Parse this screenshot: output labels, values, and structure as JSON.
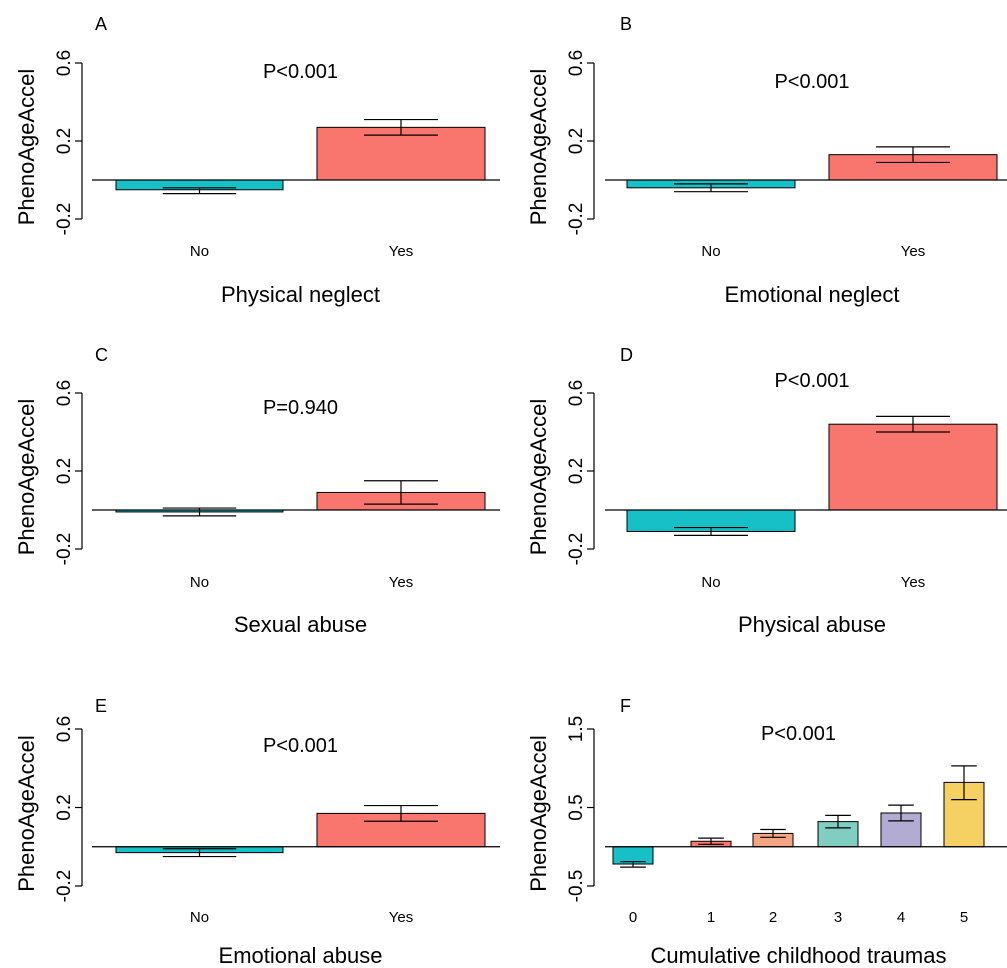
{
  "chart_data": [
    {
      "type": "bar",
      "panel": "A",
      "p_text": "P<0.001",
      "xlabel": "Physical neglect",
      "ylabel": "PhenoAgeAccel",
      "categories": [
        "No",
        "Yes"
      ],
      "values": [
        -0.05,
        0.27
      ],
      "error": [
        [
          -0.07,
          -0.04
        ],
        [
          0.23,
          0.31
        ]
      ],
      "ylim": [
        -0.2,
        0.6
      ],
      "yticks": [
        -0.2,
        0.2,
        0.6
      ],
      "ytick_labels": [
        "-0.2",
        "0.2",
        "0.6"
      ]
    },
    {
      "type": "bar",
      "panel": "B",
      "p_text": "P<0.001",
      "xlabel": "Emotional neglect",
      "ylabel": "PhenoAgeAccel",
      "categories": [
        "No",
        "Yes"
      ],
      "values": [
        -0.04,
        0.13
      ],
      "error": [
        [
          -0.06,
          -0.02
        ],
        [
          0.09,
          0.17
        ]
      ],
      "ylim": [
        -0.2,
        0.6
      ],
      "yticks": [
        -0.2,
        0.2,
        0.6
      ],
      "ytick_labels": [
        "-0.2",
        "0.2",
        "0.6"
      ]
    },
    {
      "type": "bar",
      "panel": "C",
      "p_text": "P=0.940",
      "xlabel": "Sexual abuse",
      "ylabel": "PhenoAgeAccel",
      "categories": [
        "No",
        "Yes"
      ],
      "values": [
        -0.01,
        0.09
      ],
      "error": [
        [
          -0.03,
          0.01
        ],
        [
          0.03,
          0.15
        ]
      ],
      "ylim": [
        -0.2,
        0.6
      ],
      "yticks": [
        -0.2,
        0.2,
        0.6
      ],
      "ytick_labels": [
        "-0.2",
        "0.2",
        "0.6"
      ]
    },
    {
      "type": "bar",
      "panel": "D",
      "p_text": "P<0.001",
      "xlabel": "Physical abuse",
      "ylabel": "PhenoAgeAccel",
      "categories": [
        "No",
        "Yes"
      ],
      "values": [
        -0.11,
        0.44
      ],
      "error": [
        [
          -0.13,
          -0.09
        ],
        [
          0.4,
          0.48
        ]
      ],
      "ylim": [
        -0.2,
        0.6
      ],
      "yticks": [
        -0.2,
        0.2,
        0.6
      ],
      "ytick_labels": [
        "-0.2",
        "0.2",
        "0.6"
      ]
    },
    {
      "type": "bar",
      "panel": "E",
      "p_text": "P<0.001",
      "xlabel": "Emotional abuse",
      "ylabel": "PhenoAgeAccel",
      "categories": [
        "No",
        "Yes"
      ],
      "values": [
        -0.03,
        0.17
      ],
      "error": [
        [
          -0.05,
          -0.01
        ],
        [
          0.13,
          0.21
        ]
      ],
      "ylim": [
        -0.2,
        0.6
      ],
      "yticks": [
        -0.2,
        0.2,
        0.6
      ],
      "ytick_labels": [
        "-0.2",
        "0.2",
        "0.6"
      ]
    },
    {
      "type": "bar",
      "panel": "F",
      "p_text": "P<0.001",
      "xlabel": "Cumulative childhood traumas",
      "ylabel": "PhenoAgeAccel",
      "categories": [
        "0",
        "1",
        "2",
        "3",
        "4",
        "5"
      ],
      "values": [
        -0.22,
        0.07,
        0.17,
        0.32,
        0.43,
        0.82
      ],
      "error": [
        [
          -0.26,
          -0.19
        ],
        [
          0.03,
          0.11
        ],
        [
          0.12,
          0.22
        ],
        [
          0.24,
          0.4
        ],
        [
          0.33,
          0.53
        ],
        [
          0.6,
          1.03
        ]
      ],
      "ylim": [
        -0.5,
        1.5
      ],
      "yticks": [
        -0.5,
        0.5,
        1.5
      ],
      "ytick_labels": [
        "-0.5",
        "0.5",
        "1.5"
      ]
    }
  ],
  "colors": {
    "no": "#17bfc6",
    "yes": "#f8766d",
    "series": [
      "#17bfc6",
      "#f8766d",
      "#f4a582",
      "#80cdc1",
      "#b2abd2",
      "#f5d163"
    ],
    "axis": "#000000"
  }
}
